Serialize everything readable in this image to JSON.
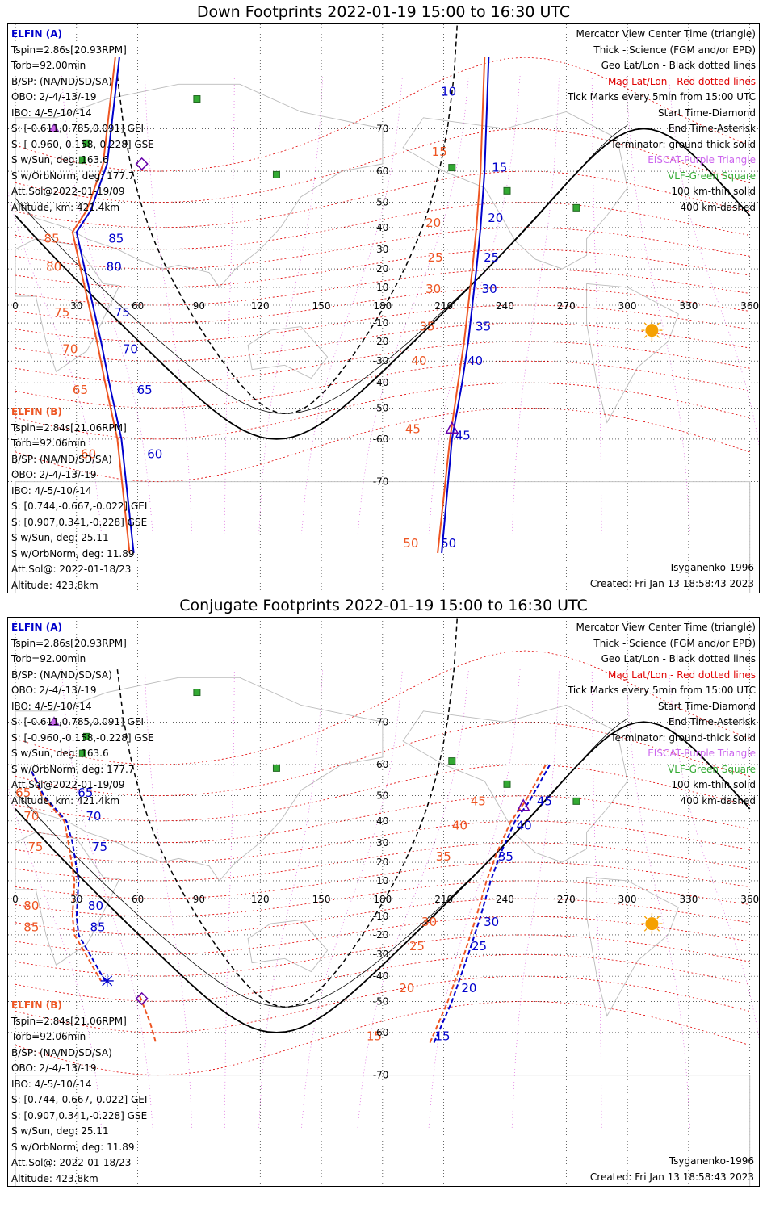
{
  "panels": [
    {
      "title": "Down Footprints 2022-01-19 15:00 to 16:30 UTC",
      "sat_a": {
        "name": "ELFIN (A)",
        "lines": [
          "Tspin=2.86s[20.93RPM]",
          "Torb=92.00min",
          "B/SP: (NA/ND/SD/SA)",
          "OBO: 2/-4/-13/-19",
          "IBO: 4/-5/-10/-14",
          "S: [-0.611,0.785,0.091] GEI",
          "S: [-0.960,-0.158,-0.228] GSE",
          "S w/Sun, deg: 163.6",
          "S w/OrbNorm, deg: 177.7",
          "Att.Sol@2022-01-19/09",
          "Altitude, km: 421.4km"
        ]
      },
      "sat_b": {
        "name": "ELFIN (B)",
        "lines": [
          "Tspin=2.84s[21.06RPM]",
          "Torb=92.06min",
          "B/SP: (NA/ND/SD/SA)",
          "OBO: 2/-4/-13/-19",
          "IBO: 4/-5/-10/-14",
          "S: [0.744,-0.667,-0.022] GEI",
          "S: [0.907,0.341,-0.228] GSE",
          "S w/Sun, deg: 25.11",
          "S w/OrbNorm, deg: 11.89",
          "Att.Sol@: 2022-01-18/23",
          "Altitude: 423.8km"
        ]
      },
      "legend": [
        "Mercator View Center Time (triangle)",
        "Thick - Science (FGM and/or EPD)",
        "Geo Lat/Lon - Black dotted lines",
        "Mag Lat/Lon - Red dotted lines",
        "Tick Marks every 5min from 15:00 UTC",
        "Start Time-Diamond",
        "End Time-Asterisk",
        "Terminator: ground-thick solid",
        "EISCAT-Purple Triangle",
        "VLF-Green Square",
        "100 km-thin solid",
        "400 km-dashed"
      ],
      "model": "Tsyganenko-1996",
      "created": "Created: Fri Jan 13 18:58:43 2023",
      "ticks_a": [
        {
          "t": "10",
          "lon": 207,
          "lat": 76
        },
        {
          "t": "15",
          "lon": 232,
          "lat": 61
        },
        {
          "t": "20",
          "lon": 230,
          "lat": 44
        },
        {
          "t": "25",
          "lon": 228,
          "lat": 26
        },
        {
          "t": "30",
          "lon": 227,
          "lat": 9
        },
        {
          "t": "35",
          "lon": 224,
          "lat": -12
        },
        {
          "t": "40",
          "lon": 220,
          "lat": -30
        },
        {
          "t": "45",
          "lon": 214,
          "lat": -59
        },
        {
          "t": "50",
          "lon": 207,
          "lat": -79
        },
        {
          "t": "85",
          "lon": 44,
          "lat": 35
        },
        {
          "t": "80",
          "lon": 43,
          "lat": 21
        },
        {
          "t": "75",
          "lon": 47,
          "lat": -4
        },
        {
          "t": "70",
          "lon": 51,
          "lat": -24
        },
        {
          "t": "65",
          "lon": 58,
          "lat": -43
        },
        {
          "t": "60",
          "lon": 63,
          "lat": -64
        }
      ],
      "ticks_b": [
        {
          "t": "15",
          "lon": 214,
          "lat": 65
        },
        {
          "t": "20",
          "lon": 211,
          "lat": 42
        },
        {
          "t": "25",
          "lon": 212,
          "lat": 26
        },
        {
          "t": "30",
          "lon": 211,
          "lat": 9
        },
        {
          "t": "35",
          "lon": 208,
          "lat": -12
        },
        {
          "t": "40",
          "lon": 204,
          "lat": -30
        },
        {
          "t": "45",
          "lon": 201,
          "lat": -57
        },
        {
          "t": "50",
          "lon": 200,
          "lat": -79
        },
        {
          "t": "85",
          "lon": 24,
          "lat": 35
        },
        {
          "t": "80",
          "lon": 25,
          "lat": 21
        },
        {
          "t": "75",
          "lon": 29,
          "lat": -4
        },
        {
          "t": "70",
          "lon": 33,
          "lat": -24
        },
        {
          "t": "65",
          "lon": 38,
          "lat": -43
        },
        {
          "t": "60",
          "lon": 42,
          "lat": -64
        }
      ]
    },
    {
      "title": "Conjugate Footprints 2022-01-19 15:00 to 16:30 UTC",
      "sat_a": {
        "name": "ELFIN (A)",
        "lines": [
          "Tspin=2.86s[20.93RPM]",
          "Torb=92.00min",
          "B/SP: (NA/ND/SD/SA)",
          "OBO: 2/-4/-13/-19",
          "IBO: 4/-5/-10/-14",
          "S: [-0.611,0.785,0.091] GEI",
          "S: [-0.960,-0.158,-0.228] GSE",
          "S w/Sun, deg: 163.6",
          "S w/OrbNorm, deg: 177.7",
          "Att.Sol@2022-01-19/09",
          "Altitude, km: 421.4km"
        ]
      },
      "sat_b": {
        "name": "ELFIN (B)",
        "lines": [
          "Tspin=2.84s[21.06RPM]",
          "Torb=92.06min",
          "B/SP: (NA/ND/SD/SA)",
          "OBO: 2/-4/-13/-19",
          "IBO: 4/-5/-10/-14",
          "S: [0.744,-0.667,-0.022] GEI",
          "S: [0.907,0.341,-0.228] GSE",
          "S w/Sun, deg: 25.11",
          "S w/OrbNorm, deg: 11.89",
          "Att.Sol@: 2022-01-18/23",
          "Altitude: 423.8km"
        ]
      },
      "legend": [
        "Mercator View Center Time (triangle)",
        "Thick - Science (FGM and/or EPD)",
        "Geo Lat/Lon - Black dotted lines",
        "Mag Lat/Lon - Red dotted lines",
        "Tick Marks every 5min from 15:00 UTC",
        "Start Time-Diamond",
        "End Time-Asterisk",
        "Terminator: ground-thick solid",
        "EISCAT-Purple Triangle",
        "VLF-Green Square",
        "100 km-thin solid",
        "400 km-dashed"
      ],
      "model": "Tsyganenko-1996",
      "created": "Created: Fri Jan 13 18:58:43 2023",
      "ticks_a": [
        {
          "t": "65",
          "lon": 29,
          "lat": 51
        },
        {
          "t": "70",
          "lon": 33,
          "lat": 42
        },
        {
          "t": "75",
          "lon": 36,
          "lat": 28
        },
        {
          "t": "80",
          "lon": 34,
          "lat": -4
        },
        {
          "t": "85",
          "lon": 35,
          "lat": -16
        },
        {
          "t": "45",
          "lon": 254,
          "lat": 48
        },
        {
          "t": "40",
          "lon": 244,
          "lat": 38
        },
        {
          "t": "35",
          "lon": 235,
          "lat": 23
        },
        {
          "t": "30",
          "lon": 228,
          "lat": -13
        },
        {
          "t": "25",
          "lon": 222,
          "lat": -26
        },
        {
          "t": "20",
          "lon": 217,
          "lat": -45
        },
        {
          "t": "15",
          "lon": 204,
          "lat": -61
        }
      ],
      "ticks_b": [
        {
          "t": "65",
          "lon": 10,
          "lat": 51
        },
        {
          "t": "70",
          "lon": 14,
          "lat": 42
        },
        {
          "t": "75",
          "lon": 16,
          "lat": 28
        },
        {
          "t": "80",
          "lon": 14,
          "lat": -4
        },
        {
          "t": "85",
          "lon": 14,
          "lat": -16
        },
        {
          "t": "45",
          "lon": 233,
          "lat": 48
        },
        {
          "t": "40",
          "lon": 224,
          "lat": 38
        },
        {
          "t": "35",
          "lon": 216,
          "lat": 23
        },
        {
          "t": "30",
          "lon": 209,
          "lat": -13
        },
        {
          "t": "25",
          "lon": 203,
          "lat": -26
        },
        {
          "t": "20",
          "lon": 198,
          "lat": -45
        },
        {
          "t": "15",
          "lon": 182,
          "lat": -61
        }
      ]
    }
  ],
  "lon_labels": [
    "0",
    "30",
    "60",
    "90",
    "120",
    "150",
    "180",
    "210",
    "240",
    "270",
    "300",
    "330",
    "360"
  ],
  "lat_labels": [
    "70",
    "60",
    "50",
    "40",
    "30",
    "20",
    "10",
    "-10",
    "-20",
    "-30",
    "-40",
    "-50",
    "-60",
    "-70"
  ],
  "colors": {
    "sat_a": "#0000cc",
    "sat_b": "#ee5522",
    "mag_grid": "#e00000",
    "geo_grid": "#000000",
    "eiscat": "#cc66ee",
    "vlf": "#33aa33",
    "sun": "#f5a000"
  },
  "chart_data": {
    "type": "map",
    "projection": "Mercator",
    "lon_range": [
      0,
      360
    ],
    "lat_range": [
      -80,
      80
    ],
    "vlf_stations": [
      [
        89,
        75
      ],
      [
        35,
        67
      ],
      [
        33,
        63
      ],
      [
        128,
        59
      ],
      [
        214,
        61
      ],
      [
        241,
        54
      ],
      [
        275,
        48
      ]
    ],
    "eiscat_stations": [
      [
        19,
        70
      ]
    ],
    "sun": [
      312,
      -14
    ],
    "down": {
      "sat_a_track": [
        [
          232,
          80
        ],
        [
          230,
          60
        ],
        [
          228,
          40
        ],
        [
          226,
          20
        ],
        [
          224,
          0
        ],
        [
          222,
          -20
        ],
        [
          219,
          -40
        ],
        [
          214,
          -60
        ],
        [
          209,
          -80
        ]
      ],
      "sat_a_track_west": [
        [
          51,
          80
        ],
        [
          45,
          62
        ],
        [
          37,
          47
        ],
        [
          30,
          38
        ],
        [
          34,
          20
        ],
        [
          38,
          0
        ],
        [
          42,
          -20
        ],
        [
          46,
          -40
        ],
        [
          52,
          -60
        ],
        [
          58,
          -80
        ]
      ],
      "sat_b_track": [
        [
          230,
          80
        ],
        [
          228,
          60
        ],
        [
          226,
          40
        ],
        [
          224,
          20
        ],
        [
          222,
          0
        ],
        [
          220,
          -20
        ],
        [
          217,
          -40
        ],
        [
          213,
          -60
        ],
        [
          207,
          -80
        ]
      ],
      "sat_b_track_west": [
        [
          49,
          80
        ],
        [
          43,
          62
        ],
        [
          35,
          47
        ],
        [
          28,
          38
        ],
        [
          32,
          20
        ],
        [
          36,
          0
        ],
        [
          40,
          -20
        ],
        [
          44,
          -40
        ],
        [
          50,
          -60
        ],
        [
          56,
          -80
        ]
      ],
      "start_a": [
        62,
        62
      ],
      "start_b": [
        62,
        62
      ],
      "center_a": [
        214,
        -57
      ],
      "center_b": [
        214,
        -57
      ]
    },
    "conjugate": {
      "sat_a_track": [
        [
          262,
          60
        ],
        [
          252,
          48
        ],
        [
          245,
          40
        ],
        [
          238,
          25
        ],
        [
          233,
          10
        ],
        [
          228,
          -10
        ],
        [
          222,
          -30
        ],
        [
          214,
          -50
        ],
        [
          205,
          -63
        ]
      ],
      "sat_a_track_west": [
        [
          8,
          58
        ],
        [
          14,
          50
        ],
        [
          25,
          40
        ],
        [
          28,
          30
        ],
        [
          31,
          10
        ],
        [
          30,
          -10
        ],
        [
          31,
          -20
        ],
        [
          44,
          -42
        ]
      ],
      "sat_b_track": [
        [
          260,
          60
        ],
        [
          250,
          48
        ],
        [
          243,
          40
        ],
        [
          236,
          25
        ],
        [
          231,
          10
        ],
        [
          226,
          -10
        ],
        [
          220,
          -30
        ],
        [
          212,
          -50
        ],
        [
          203,
          -63
        ]
      ],
      "sat_b_track_west": [
        [
          8,
          58
        ],
        [
          13,
          50
        ],
        [
          24,
          40
        ],
        [
          26,
          30
        ],
        [
          29,
          10
        ],
        [
          28,
          -10
        ],
        [
          29,
          -20
        ],
        [
          42,
          -42
        ]
      ],
      "sat_b_seg2": [
        [
          61,
          -48
        ],
        [
          66,
          -57
        ],
        [
          69,
          -63
        ]
      ],
      "start_a": [
        62,
        -49
      ],
      "end_a": [
        45,
        -42
      ],
      "center_a": [
        249,
        46
      ]
    }
  }
}
